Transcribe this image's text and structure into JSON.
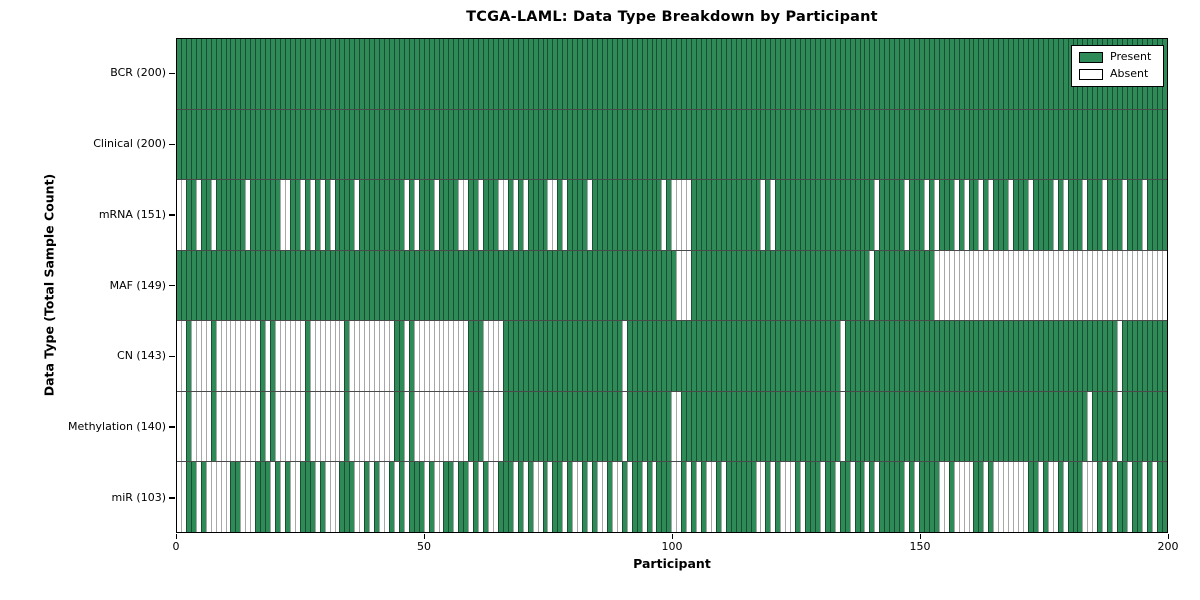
{
  "chart_data": {
    "type": "heatmap",
    "title": "TCGA-LAML: Data Type Breakdown by Participant",
    "xlabel": "Participant",
    "ylabel": "Data Type (Total Sample Count)",
    "x_ticks": [
      0,
      50,
      100,
      150,
      200
    ],
    "n_participants": 200,
    "grid": false,
    "legend_position": "upper right",
    "legend": [
      {
        "label": "Present",
        "color": "#2E8B57"
      },
      {
        "label": "Absent",
        "color": "#FFFFFF"
      }
    ],
    "colors": {
      "present": "#2E8B57",
      "absent": "#FFFFFF",
      "present_edge": "#1B4D32",
      "absent_edge": "#A8A8A8",
      "row_divider": "#4A4A4A",
      "plot_border": "#000000"
    },
    "rows": [
      {
        "name": "BCR",
        "label": "BCR (200)",
        "present_count": 200,
        "absent_indices": []
      },
      {
        "name": "Clinical",
        "label": "Clinical (200)",
        "present_count": 200,
        "absent_indices": []
      },
      {
        "name": "mRNA",
        "label": "mRNA (151)",
        "present_count": 151,
        "absent_indices": [
          0,
          1,
          4,
          7,
          14,
          21,
          22,
          25,
          27,
          29,
          31,
          36,
          46,
          48,
          52,
          57,
          58,
          61,
          65,
          66,
          68,
          70,
          75,
          76,
          78,
          83,
          98,
          100,
          101,
          102,
          103,
          118,
          120,
          141,
          147,
          151,
          153,
          157,
          159,
          162,
          164,
          168,
          172,
          177,
          179,
          183,
          187,
          191,
          195
        ]
      },
      {
        "name": "MAF",
        "label": "MAF (149)",
        "present_count": 149,
        "absent_indices": [
          101,
          102,
          103,
          140,
          153,
          154,
          155,
          156,
          157,
          158,
          159,
          160,
          161,
          162,
          163,
          164,
          165,
          166,
          167,
          168,
          169,
          170,
          171,
          172,
          173,
          174,
          175,
          176,
          177,
          178,
          179,
          180,
          181,
          182,
          183,
          184,
          185,
          186,
          187,
          188,
          189,
          190,
          191,
          192,
          193,
          194,
          195,
          196,
          197,
          198,
          199
        ]
      },
      {
        "name": "CN",
        "label": "CN (143)",
        "present_count": 143,
        "absent_indices": [
          0,
          1,
          3,
          4,
          5,
          6,
          8,
          9,
          10,
          11,
          12,
          13,
          14,
          15,
          16,
          18,
          20,
          21,
          22,
          23,
          24,
          25,
          27,
          28,
          29,
          30,
          31,
          32,
          33,
          35,
          36,
          37,
          38,
          39,
          40,
          41,
          42,
          43,
          46,
          48,
          49,
          50,
          51,
          52,
          53,
          54,
          55,
          56,
          57,
          58,
          62,
          63,
          64,
          65,
          90,
          134,
          190
        ]
      },
      {
        "name": "Methylation",
        "label": "Methylation (140)",
        "present_count": 140,
        "absent_indices": [
          0,
          1,
          3,
          4,
          5,
          6,
          8,
          9,
          10,
          11,
          12,
          13,
          14,
          15,
          16,
          18,
          20,
          21,
          22,
          23,
          24,
          25,
          27,
          28,
          29,
          30,
          31,
          32,
          33,
          35,
          36,
          37,
          38,
          39,
          40,
          41,
          42,
          43,
          46,
          48,
          49,
          50,
          51,
          52,
          53,
          54,
          55,
          56,
          57,
          58,
          62,
          63,
          64,
          65,
          90,
          100,
          101,
          134,
          184,
          190
        ]
      },
      {
        "name": "miR",
        "label": "miR (103)",
        "present_count": 103,
        "absent_indices": [
          0,
          1,
          4,
          6,
          7,
          8,
          9,
          10,
          13,
          14,
          15,
          19,
          21,
          23,
          24,
          28,
          30,
          31,
          32,
          36,
          37,
          39,
          41,
          42,
          44,
          46,
          50,
          52,
          53,
          56,
          59,
          61,
          63,
          64,
          68,
          70,
          72,
          73,
          75,
          78,
          80,
          81,
          83,
          85,
          86,
          88,
          89,
          91,
          94,
          96,
          100,
          101,
          103,
          105,
          107,
          108,
          110,
          117,
          118,
          120,
          122,
          123,
          124,
          126,
          130,
          133,
          136,
          139,
          141,
          147,
          149,
          154,
          155,
          157,
          158,
          159,
          160,
          163,
          165,
          166,
          167,
          168,
          169,
          170,
          171,
          174,
          176,
          177,
          179,
          183,
          184,
          185,
          187,
          189,
          192,
          195,
          197
        ]
      }
    ]
  }
}
